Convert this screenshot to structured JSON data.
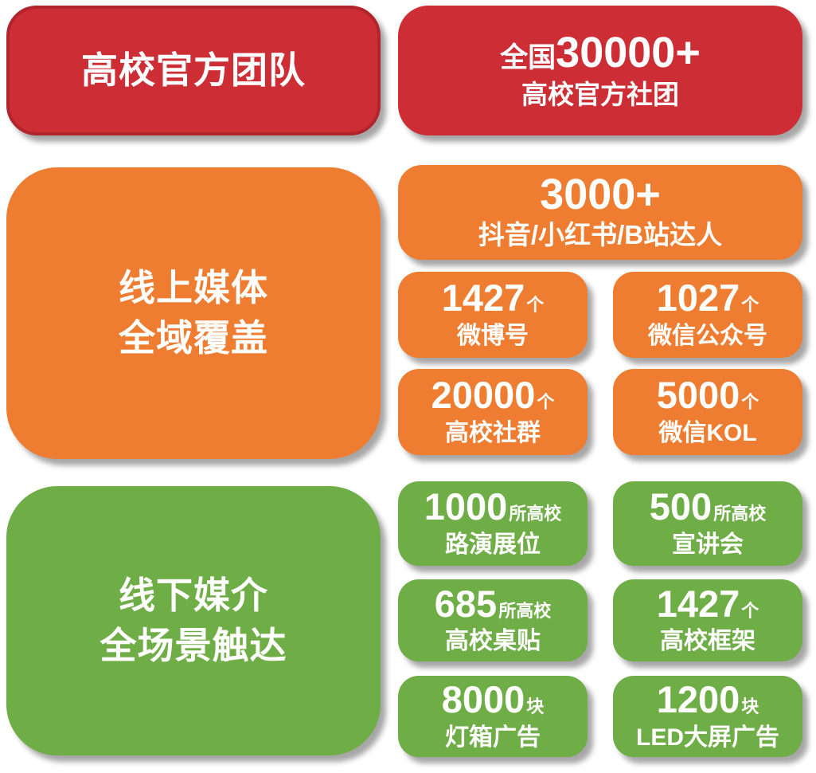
{
  "colors": {
    "red": "#cd2e36",
    "red_border": "#b2242b",
    "orange": "#ee7d31",
    "green": "#6fad47",
    "text": "#ffffff"
  },
  "official": {
    "title": "高校官方团队",
    "stat_prefix": "全国",
    "stat_number": "30000+",
    "stat_label": "高校官方社团"
  },
  "online": {
    "title_line1": "线上媒体",
    "title_line2": "全域覆盖",
    "wide_number": "3000+",
    "wide_label": "抖音/小红书/B站达人",
    "stats": [
      {
        "number": "1427",
        "unit": "个",
        "label": "微博号"
      },
      {
        "number": "1027",
        "unit": "个",
        "label": "微信公众号"
      },
      {
        "number": "20000",
        "unit": "个",
        "label": "高校社群"
      },
      {
        "number": "5000",
        "unit": "个",
        "label": "微信KOL"
      }
    ]
  },
  "offline": {
    "title_line1": "线下媒介",
    "title_line2": "全场景触达",
    "stats": [
      {
        "number": "1000",
        "unit": "所高校",
        "label": "路演展位"
      },
      {
        "number": "500",
        "unit": "所高校",
        "label": "宣讲会"
      },
      {
        "number": "685",
        "unit": "所高校",
        "label": "高校桌贴"
      },
      {
        "number": "1427",
        "unit": "个",
        "label": "高校框架"
      },
      {
        "number": "8000",
        "unit": "块",
        "label": "灯箱广告"
      },
      {
        "number": "1200",
        "unit": "块",
        "label": "LED大屏广告"
      }
    ]
  }
}
